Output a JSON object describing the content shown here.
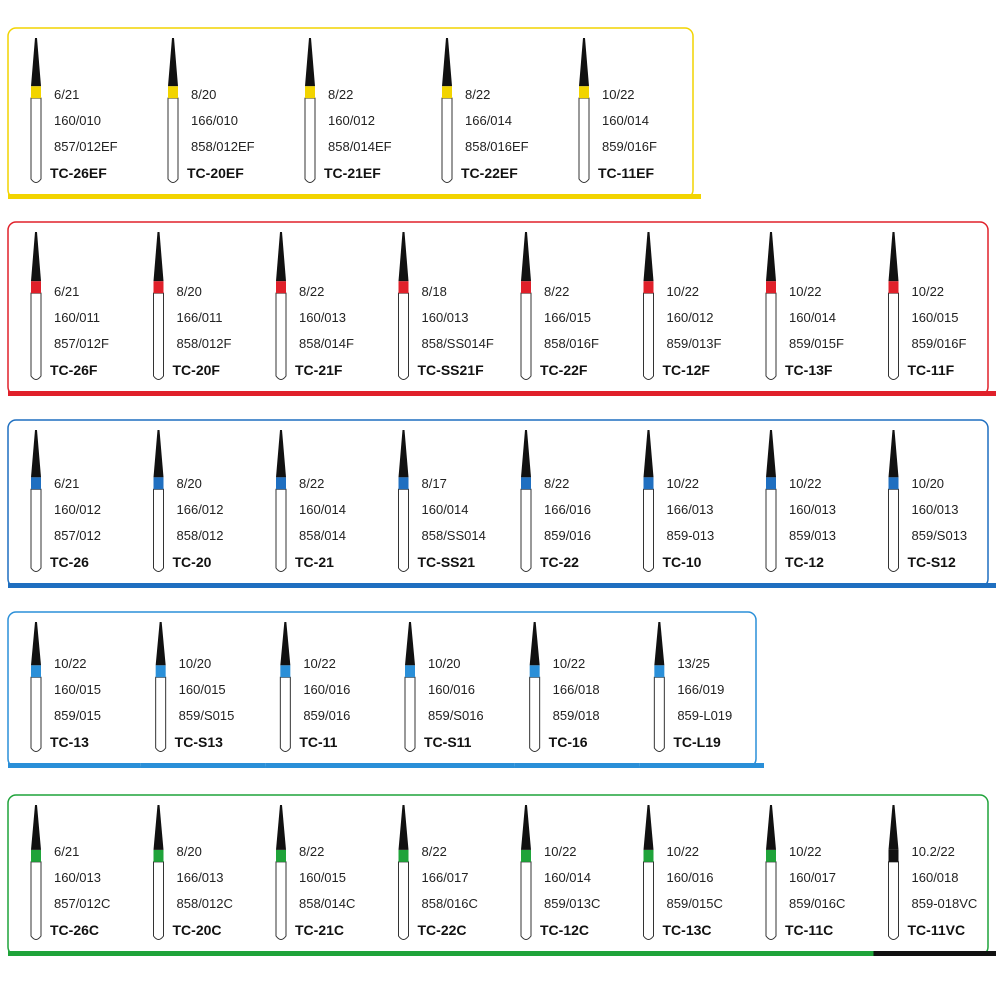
{
  "groups": [
    {
      "color": "#f2d400",
      "items": [
        {
          "lines": [
            "6/21",
            "160/010",
            "857/012EF"
          ],
          "name": "TC-26EF"
        },
        {
          "lines": [
            "8/20",
            "166/010",
            "858/012EF"
          ],
          "name": "TC-20EF"
        },
        {
          "lines": [
            "8/22",
            "160/012",
            "858/014EF"
          ],
          "name": "TC-21EF"
        },
        {
          "lines": [
            "8/22",
            "166/014",
            "858/016EF"
          ],
          "name": "TC-22EF"
        },
        {
          "lines": [
            "10/22",
            "160/014",
            "859/016F"
          ],
          "name": "TC-11EF"
        }
      ]
    },
    {
      "color": "#e0202a",
      "items": [
        {
          "lines": [
            "6/21",
            "160/011",
            "857/012F"
          ],
          "name": "TC-26F"
        },
        {
          "lines": [
            "8/20",
            "166/011",
            "858/012F"
          ],
          "name": "TC-20F"
        },
        {
          "lines": [
            "8/22",
            "160/013",
            "858/014F"
          ],
          "name": "TC-21F"
        },
        {
          "lines": [
            "8/18",
            "160/013",
            "858/SS014F"
          ],
          "name": "TC-SS21F"
        },
        {
          "lines": [
            "8/22",
            "166/015",
            "858/016F"
          ],
          "name": "TC-22F"
        },
        {
          "lines": [
            "10/22",
            "160/012",
            "859/013F"
          ],
          "name": "TC-12F"
        },
        {
          "lines": [
            "10/22",
            "160/014",
            "859/015F"
          ],
          "name": "TC-13F"
        },
        {
          "lines": [
            "10/22",
            "160/015",
            "859/016F"
          ],
          "name": "TC-11F"
        }
      ]
    },
    {
      "color": "#1f6fc0",
      "items": [
        {
          "lines": [
            "6/21",
            "160/012",
            "857/012"
          ],
          "name": "TC-26"
        },
        {
          "lines": [
            "8/20",
            "166/012",
            "858/012"
          ],
          "name": "TC-20"
        },
        {
          "lines": [
            "8/22",
            "160/014",
            "858/014"
          ],
          "name": "TC-21"
        },
        {
          "lines": [
            "8/17",
            "160/014",
            "858/SS014"
          ],
          "name": "TC-SS21"
        },
        {
          "lines": [
            "8/22",
            "166/016",
            "859/016"
          ],
          "name": "TC-22"
        },
        {
          "lines": [
            "10/22",
            "166/013",
            "859-013"
          ],
          "name": "TC-10"
        },
        {
          "lines": [
            "10/22",
            "160/013",
            "859/013"
          ],
          "name": "TC-12"
        },
        {
          "lines": [
            "10/20",
            "160/013",
            "859/S013"
          ],
          "name": "TC-S12"
        }
      ]
    },
    {
      "color": "#2a8fd8",
      "items": [
        {
          "lines": [
            "10/22",
            "160/015",
            "859/015"
          ],
          "name": "TC-13"
        },
        {
          "lines": [
            "10/20",
            "160/015",
            "859/S015"
          ],
          "name": "TC-S13"
        },
        {
          "lines": [
            "10/22",
            "160/016",
            "859/016"
          ],
          "name": "TC-11"
        },
        {
          "lines": [
            "10/20",
            "160/016",
            "859/S016"
          ],
          "name": "TC-S11"
        },
        {
          "lines": [
            "10/22",
            "166/018",
            "859/018"
          ],
          "name": "TC-16"
        },
        {
          "lines": [
            "13/25",
            "166/019",
            "859-L019"
          ],
          "name": "TC-L19"
        }
      ]
    },
    {
      "color": "#1fa33a",
      "items": [
        {
          "lines": [
            "6/21",
            "160/013",
            "857/012C"
          ],
          "name": "TC-26C"
        },
        {
          "lines": [
            "8/20",
            "166/013",
            "858/012C"
          ],
          "name": "TC-20C"
        },
        {
          "lines": [
            "8/22",
            "160/015",
            "858/014C"
          ],
          "name": "TC-21C"
        },
        {
          "lines": [
            "8/22",
            "166/017",
            "858/016C"
          ],
          "name": "TC-22C"
        },
        {
          "lines": [
            "10/22",
            "160/014",
            "859/013C"
          ],
          "name": "TC-12C"
        },
        {
          "lines": [
            "10/22",
            "160/016",
            "859/015C"
          ],
          "name": "TC-13C"
        },
        {
          "lines": [
            "10/22",
            "160/017",
            "859/016C"
          ],
          "name": "TC-11C"
        },
        {
          "lines": [
            "10.2/22",
            "160/018",
            "859-018VC"
          ],
          "name": "TC-11VC",
          "color": "#111111"
        }
      ]
    }
  ]
}
